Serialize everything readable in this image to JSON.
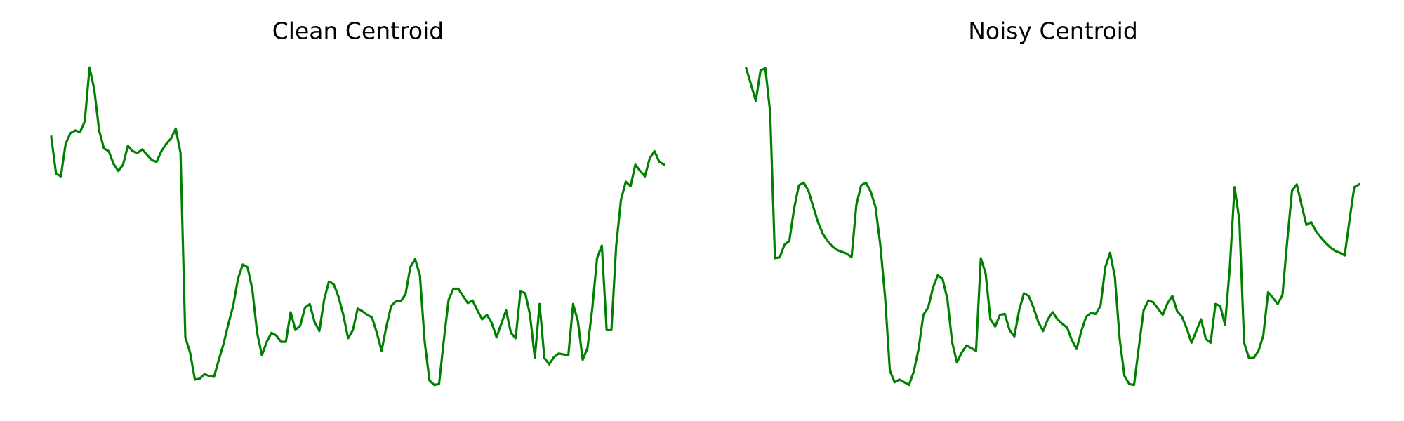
{
  "chart_data": [
    {
      "type": "line",
      "title": "Clean Centroid",
      "color": "#008000",
      "ylim": [
        0,
        380
      ],
      "values": [
        288,
        247,
        244,
        280,
        292,
        295,
        293,
        305,
        365,
        340,
        295,
        275,
        272,
        258,
        250,
        257,
        278,
        272,
        270,
        274,
        268,
        262,
        260,
        272,
        280,
        286,
        297,
        270,
        65,
        48,
        18,
        19,
        24,
        22,
        21,
        40,
        58,
        80,
        100,
        130,
        146,
        143,
        118,
        70,
        45,
        60,
        70,
        67,
        60,
        60,
        93,
        73,
        78,
        98,
        102,
        82,
        72,
        107,
        127,
        124,
        110,
        90,
        64,
        73,
        97,
        94,
        90,
        87,
        70,
        50,
        77,
        100,
        105,
        105,
        113,
        143,
        152,
        134,
        60,
        17,
        12,
        13,
        62,
        107,
        119,
        119,
        111,
        103,
        106,
        95,
        85,
        90,
        81,
        65,
        80,
        95,
        70,
        64,
        116,
        114,
        90,
        42,
        102,
        42,
        35,
        43,
        47,
        46,
        45,
        102,
        83,
        40,
        53,
        97,
        153,
        167,
        73,
        73,
        167,
        218,
        238,
        233,
        257,
        250,
        244,
        264,
        272,
        260,
        257
      ]
    },
    {
      "type": "line",
      "title": "Noisy Centroid",
      "color": "#008000",
      "ylim": [
        0,
        380
      ],
      "values": [
        364,
        346,
        328,
        362,
        364,
        315,
        153,
        154,
        168,
        172,
        208,
        234,
        237,
        228,
        210,
        193,
        180,
        172,
        166,
        162,
        160,
        158,
        154,
        212,
        234,
        237,
        227,
        210,
        168,
        110,
        28,
        15,
        18,
        15,
        12,
        27,
        52,
        90,
        98,
        120,
        134,
        130,
        108,
        60,
        37,
        48,
        56,
        53,
        50,
        153,
        136,
        85,
        77,
        90,
        91,
        73,
        66,
        95,
        114,
        111,
        98,
        82,
        72,
        85,
        93,
        85,
        80,
        76,
        62,
        52,
        72,
        88,
        92,
        91,
        100,
        143,
        159,
        132,
        63,
        22,
        13,
        12,
        54,
        95,
        106,
        104,
        97,
        90,
        103,
        111,
        94,
        88,
        75,
        59,
        72,
        85,
        63,
        59,
        102,
        100,
        79,
        142,
        232,
        195,
        59,
        42,
        42,
        50,
        67,
        115,
        109,
        102,
        112,
        172,
        228,
        235,
        212,
        190,
        193,
        183,
        176,
        170,
        165,
        161,
        159,
        156,
        195,
        232,
        235
      ]
    }
  ]
}
